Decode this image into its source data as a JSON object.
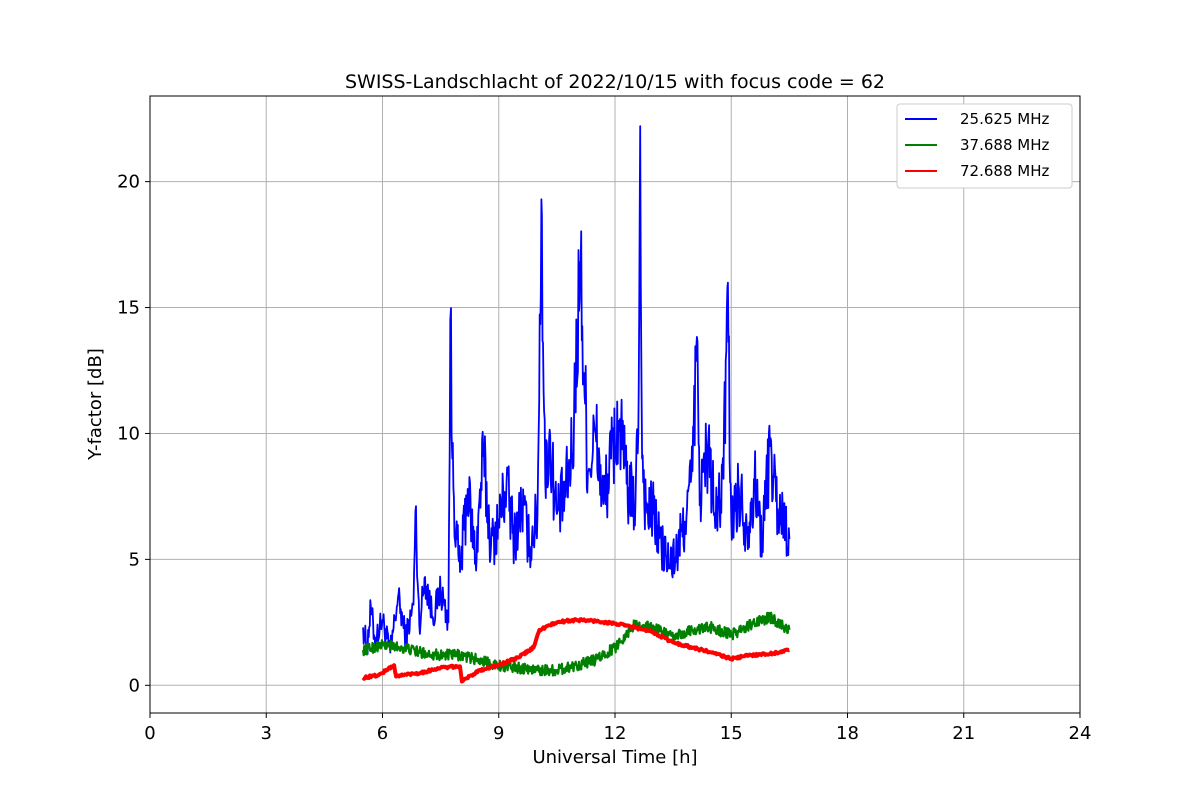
{
  "chart_data": {
    "type": "line",
    "title": "SWISS-Landschlacht of 2022/10/15 with focus code = 62",
    "xlabel": "Universal Time [h]",
    "ylabel": "Y-factor [dB]",
    "xlim": [
      0,
      24
    ],
    "ylim": [
      -1.1,
      23.4
    ],
    "xticks": [
      "0",
      "3",
      "6",
      "9",
      "12",
      "15",
      "18",
      "21",
      "24"
    ],
    "yticks": [
      "0",
      "5",
      "10",
      "15",
      "20"
    ],
    "grid": true,
    "legend_position": "top-right",
    "series": [
      {
        "name": "25.625 MHz",
        "color": "#0000ff",
        "x": [
          5.5,
          5.6,
          5.7,
          5.8,
          6.0,
          6.2,
          6.4,
          6.6,
          6.8,
          6.85,
          6.95,
          7.1,
          7.3,
          7.5,
          7.7,
          7.75,
          7.8,
          7.9,
          8.0,
          8.2,
          8.4,
          8.6,
          8.8,
          9.0,
          9.2,
          9.4,
          9.6,
          9.8,
          10.0,
          10.1,
          10.2,
          10.3,
          10.5,
          10.7,
          10.9,
          11.1,
          11.3,
          11.5,
          11.7,
          11.9,
          12.1,
          12.3,
          12.5,
          12.6,
          12.65,
          12.7,
          12.8,
          13.0,
          13.2,
          13.4,
          13.6,
          13.8,
          14.0,
          14.1,
          14.2,
          14.4,
          14.6,
          14.8,
          14.9,
          15.0,
          15.2,
          15.4,
          15.6,
          15.8,
          16.0,
          16.2,
          16.4,
          16.5
        ],
        "values": [
          2.3,
          1.5,
          3.1,
          1.8,
          2.6,
          1.3,
          3.5,
          1.9,
          3.2,
          6.9,
          2.4,
          4.3,
          2.7,
          3.8,
          2.5,
          14.5,
          9.0,
          6.0,
          4.5,
          7.8,
          5.0,
          9.1,
          5.5,
          6.5,
          8.0,
          5.8,
          7.2,
          5.5,
          6.8,
          19.3,
          8.0,
          9.8,
          6.8,
          7.5,
          9.2,
          16.8,
          8.5,
          10.0,
          7.2,
          9.0,
          10.5,
          8.0,
          7.0,
          10.0,
          22.2,
          9.0,
          7.0,
          6.8,
          5.5,
          4.8,
          5.2,
          6.5,
          8.5,
          13.5,
          7.6,
          9.5,
          6.5,
          8.2,
          15.8,
          6.5,
          7.8,
          6.2,
          8.0,
          5.8,
          9.5,
          7.0,
          6.5,
          5.8
        ]
      },
      {
        "name": "37.688 MHz",
        "color": "#008000",
        "x": [
          5.5,
          6.0,
          6.5,
          7.0,
          7.5,
          8.0,
          8.5,
          9.0,
          9.5,
          10.0,
          10.5,
          11.0,
          11.5,
          12.0,
          12.5,
          13.0,
          13.5,
          14.0,
          14.5,
          15.0,
          15.5,
          16.0,
          16.5
        ],
        "values": [
          1.4,
          1.6,
          1.5,
          1.3,
          1.2,
          1.2,
          1.0,
          0.8,
          0.7,
          0.6,
          0.6,
          0.8,
          1.0,
          1.5,
          2.4,
          2.3,
          1.9,
          2.2,
          2.3,
          2.0,
          2.4,
          2.7,
          2.2
        ]
      },
      {
        "name": "72.688 MHz",
        "color": "#ff0000",
        "x": [
          5.5,
          5.9,
          6.3,
          6.35,
          6.7,
          7.0,
          7.5,
          8.0,
          8.05,
          8.5,
          9.0,
          9.5,
          9.9,
          10.05,
          10.5,
          11.0,
          11.5,
          12.0,
          12.5,
          13.0,
          13.5,
          14.0,
          14.5,
          15.0,
          15.5,
          16.0,
          16.5
        ],
        "values": [
          0.3,
          0.4,
          0.8,
          0.35,
          0.45,
          0.5,
          0.7,
          0.75,
          0.15,
          0.6,
          0.8,
          1.1,
          1.5,
          2.2,
          2.5,
          2.6,
          2.55,
          2.45,
          2.3,
          2.1,
          1.7,
          1.5,
          1.3,
          1.05,
          1.2,
          1.25,
          1.4
        ]
      }
    ]
  }
}
